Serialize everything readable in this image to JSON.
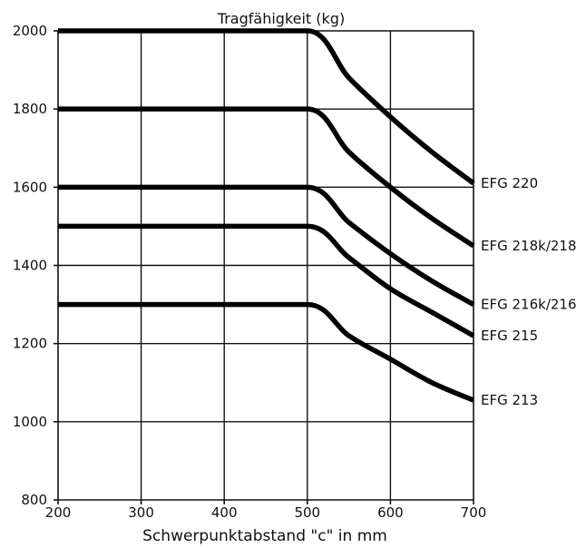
{
  "chart_data": {
    "type": "line",
    "title": "Tragfähigkeit (kg)",
    "xlabel": "Schwerpunktabstand \"c\" in mm",
    "ylabel": "",
    "xlim": [
      200,
      700
    ],
    "ylim": [
      800,
      2000
    ],
    "xticks": [
      "200",
      "300",
      "400",
      "500",
      "600",
      "700"
    ],
    "yticks": [
      "800",
      "1000",
      "1200",
      "1400",
      "1600",
      "1800",
      "2000"
    ],
    "grid": true,
    "x": [
      200,
      300,
      400,
      500,
      550,
      600,
      650,
      700
    ],
    "series": [
      {
        "name": "EFG 220",
        "values": [
          2000,
          2000,
          2000,
          2000,
          1880,
          1780,
          1690,
          1610
        ]
      },
      {
        "name": "EFG 218k/218",
        "values": [
          1800,
          1800,
          1800,
          1800,
          1690,
          1600,
          1520,
          1450
        ]
      },
      {
        "name": "EFG 216k/216",
        "values": [
          1600,
          1600,
          1600,
          1600,
          1510,
          1430,
          1360,
          1300
        ]
      },
      {
        "name": "EFG 215",
        "values": [
          1500,
          1500,
          1500,
          1500,
          1420,
          1340,
          1280,
          1220
        ]
      },
      {
        "name": "EFG 213",
        "values": [
          1300,
          1300,
          1300,
          1300,
          1220,
          1160,
          1100,
          1055
        ]
      }
    ]
  }
}
